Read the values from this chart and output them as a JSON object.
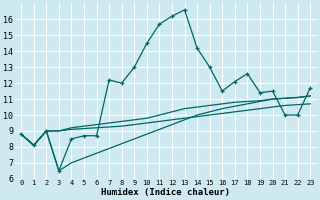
{
  "xlabel": "Humidex (Indice chaleur)",
  "background_color": "#cfe9f0",
  "grid_color": "#ffffff",
  "line_color": "#006666",
  "xlim": [
    -0.5,
    23.5
  ],
  "ylim": [
    6,
    17
  ],
  "yticks": [
    6,
    7,
    8,
    9,
    10,
    11,
    12,
    13,
    14,
    15,
    16
  ],
  "xticks": [
    0,
    1,
    2,
    3,
    4,
    5,
    6,
    7,
    8,
    9,
    10,
    11,
    12,
    13,
    14,
    15,
    16,
    17,
    18,
    19,
    20,
    21,
    22,
    23
  ],
  "series": [
    [
      8.8,
      8.1,
      9.0,
      6.5,
      8.5,
      8.7,
      8.7,
      12.2,
      12.0,
      13.0,
      14.5,
      15.7,
      16.2,
      16.6,
      14.2,
      13.0,
      11.5,
      12.1,
      12.6,
      11.4,
      11.5,
      10.0,
      10.0,
      11.7
    ],
    [
      8.8,
      8.1,
      9.0,
      9.0,
      9.2,
      9.3,
      9.4,
      9.5,
      9.6,
      9.7,
      9.8,
      10.0,
      10.2,
      10.4,
      10.5,
      10.6,
      10.7,
      10.8,
      10.85,
      10.9,
      11.0,
      11.05,
      11.1,
      11.2
    ],
    [
      8.8,
      8.1,
      9.0,
      9.0,
      9.1,
      9.15,
      9.2,
      9.25,
      9.3,
      9.4,
      9.5,
      9.6,
      9.7,
      9.8,
      9.9,
      10.0,
      10.1,
      10.2,
      10.3,
      10.4,
      10.5,
      10.6,
      10.65,
      10.7
    ],
    [
      8.8,
      8.1,
      9.0,
      6.5,
      7.0,
      7.3,
      7.6,
      7.9,
      8.2,
      8.5,
      8.8,
      9.1,
      9.4,
      9.7,
      10.0,
      10.2,
      10.4,
      10.55,
      10.7,
      10.85,
      11.0,
      11.05,
      11.1,
      11.2
    ]
  ]
}
